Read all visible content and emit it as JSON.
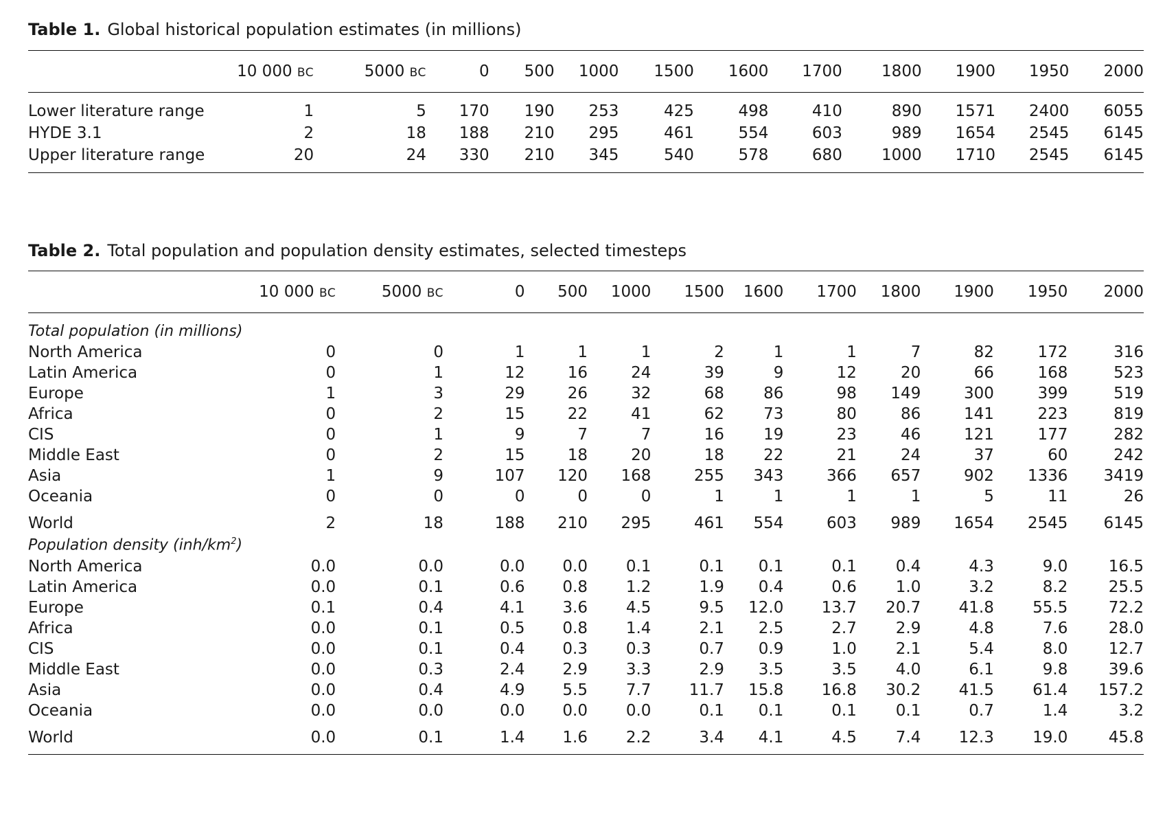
{
  "table1": {
    "number": "Table 1.",
    "caption": "Global historical population estimates (in millions)",
    "columns": [
      {
        "main": "10 000",
        "era": "BC"
      },
      {
        "main": "5000",
        "era": "BC"
      },
      {
        "main": "0",
        "era": ""
      },
      {
        "main": "500",
        "era": ""
      },
      {
        "main": "1000",
        "era": ""
      },
      {
        "main": "1500",
        "era": ""
      },
      {
        "main": "1600",
        "era": ""
      },
      {
        "main": "1700",
        "era": ""
      },
      {
        "main": "1800",
        "era": ""
      },
      {
        "main": "1900",
        "era": ""
      },
      {
        "main": "1950",
        "era": ""
      },
      {
        "main": "2000",
        "era": ""
      }
    ],
    "rows": [
      {
        "label": "Lower literature range",
        "values": [
          "1",
          "5",
          "170",
          "190",
          "253",
          "425",
          "498",
          "410",
          "890",
          "1571",
          "2400",
          "6055"
        ]
      },
      {
        "label": "HYDE 3.1",
        "values": [
          "2",
          "18",
          "188",
          "210",
          "295",
          "461",
          "554",
          "603",
          "989",
          "1654",
          "2545",
          "6145"
        ]
      },
      {
        "label": "Upper literature range",
        "values": [
          "20",
          "24",
          "330",
          "210",
          "345",
          "540",
          "578",
          "680",
          "1000",
          "1710",
          "2545",
          "6145"
        ]
      }
    ]
  },
  "table2": {
    "number": "Table 2.",
    "caption": "Total population and population density estimates, selected timesteps",
    "columns": [
      {
        "main": "10 000",
        "era": "BC"
      },
      {
        "main": "5000",
        "era": "BC"
      },
      {
        "main": "0",
        "era": ""
      },
      {
        "main": "500",
        "era": ""
      },
      {
        "main": "1000",
        "era": ""
      },
      {
        "main": "1500",
        "era": ""
      },
      {
        "main": "1600",
        "era": ""
      },
      {
        "main": "1700",
        "era": ""
      },
      {
        "main": "1800",
        "era": ""
      },
      {
        "main": "1900",
        "era": ""
      },
      {
        "main": "1950",
        "era": ""
      },
      {
        "main": "2000",
        "era": ""
      }
    ],
    "population_section": {
      "title": "Total population (in millions)",
      "rows": [
        {
          "label": "North America",
          "values": [
            "0",
            "0",
            "1",
            "1",
            "1",
            "2",
            "1",
            "1",
            "7",
            "82",
            "172",
            "316"
          ]
        },
        {
          "label": "Latin America",
          "values": [
            "0",
            "1",
            "12",
            "16",
            "24",
            "39",
            "9",
            "12",
            "20",
            "66",
            "168",
            "523"
          ]
        },
        {
          "label": "Europe",
          "values": [
            "1",
            "3",
            "29",
            "26",
            "32",
            "68",
            "86",
            "98",
            "149",
            "300",
            "399",
            "519"
          ]
        },
        {
          "label": "Africa",
          "values": [
            "0",
            "2",
            "15",
            "22",
            "41",
            "62",
            "73",
            "80",
            "86",
            "141",
            "223",
            "819"
          ]
        },
        {
          "label": "CIS",
          "values": [
            "0",
            "1",
            "9",
            "7",
            "7",
            "16",
            "19",
            "23",
            "46",
            "121",
            "177",
            "282"
          ]
        },
        {
          "label": "Middle East",
          "values": [
            "0",
            "2",
            "15",
            "18",
            "20",
            "18",
            "22",
            "21",
            "24",
            "37",
            "60",
            "242"
          ]
        },
        {
          "label": "Asia",
          "values": [
            "1",
            "9",
            "107",
            "120",
            "168",
            "255",
            "343",
            "366",
            "657",
            "902",
            "1336",
            "3419"
          ]
        },
        {
          "label": "Oceania",
          "values": [
            "0",
            "0",
            "0",
            "0",
            "0",
            "1",
            "1",
            "1",
            "1",
            "5",
            "11",
            "26"
          ]
        }
      ],
      "total": {
        "label": "World",
        "values": [
          "2",
          "18",
          "188",
          "210",
          "295",
          "461",
          "554",
          "603",
          "989",
          "1654",
          "2545",
          "6145"
        ]
      }
    },
    "density_section": {
      "title": "Population density (inh/km",
      "title_sup": "2",
      "title_end": ")",
      "rows": [
        {
          "label": "North America",
          "values": [
            "0.0",
            "0.0",
            "0.0",
            "0.0",
            "0.1",
            "0.1",
            "0.1",
            "0.1",
            "0.4",
            "4.3",
            "9.0",
            "16.5"
          ]
        },
        {
          "label": "Latin America",
          "values": [
            "0.0",
            "0.1",
            "0.6",
            "0.8",
            "1.2",
            "1.9",
            "0.4",
            "0.6",
            "1.0",
            "3.2",
            "8.2",
            "25.5"
          ]
        },
        {
          "label": "Europe",
          "values": [
            "0.1",
            "0.4",
            "4.1",
            "3.6",
            "4.5",
            "9.5",
            "12.0",
            "13.7",
            "20.7",
            "41.8",
            "55.5",
            "72.2"
          ]
        },
        {
          "label": "Africa",
          "values": [
            "0.0",
            "0.1",
            "0.5",
            "0.8",
            "1.4",
            "2.1",
            "2.5",
            "2.7",
            "2.9",
            "4.8",
            "7.6",
            "28.0"
          ]
        },
        {
          "label": "CIS",
          "values": [
            "0.0",
            "0.1",
            "0.4",
            "0.3",
            "0.3",
            "0.7",
            "0.9",
            "1.0",
            "2.1",
            "5.4",
            "8.0",
            "12.7"
          ]
        },
        {
          "label": "Middle East",
          "values": [
            "0.0",
            "0.3",
            "2.4",
            "2.9",
            "3.3",
            "2.9",
            "3.5",
            "3.5",
            "4.0",
            "6.1",
            "9.8",
            "39.6"
          ]
        },
        {
          "label": "Asia",
          "values": [
            "0.0",
            "0.4",
            "4.9",
            "5.5",
            "7.7",
            "11.7",
            "15.8",
            "16.8",
            "30.2",
            "41.5",
            "61.4",
            "157.2"
          ]
        },
        {
          "label": "Oceania",
          "values": [
            "0.0",
            "0.0",
            "0.0",
            "0.0",
            "0.0",
            "0.1",
            "0.1",
            "0.1",
            "0.1",
            "0.7",
            "1.4",
            "3.2"
          ]
        }
      ],
      "total": {
        "label": "World",
        "values": [
          "0.0",
          "0.1",
          "1.4",
          "1.6",
          "2.2",
          "3.4",
          "4.1",
          "4.5",
          "7.4",
          "12.3",
          "19.0",
          "45.8"
        ]
      }
    }
  }
}
